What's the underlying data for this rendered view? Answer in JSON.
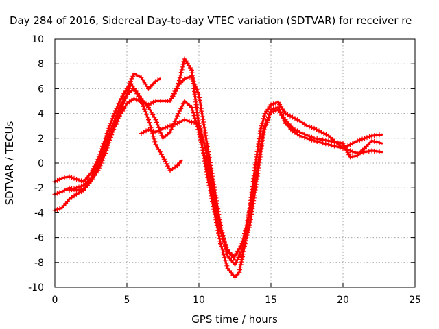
{
  "chart_data": {
    "type": "line",
    "title": "Day 284 of 2016, Sidereal Day-to-day VTEC variation (SDTVAR) for receiver re",
    "xlabel": "GPS time / hours",
    "ylabel": "SDTVAR / TECUs",
    "xlim": [
      0,
      25
    ],
    "ylim": [
      -10,
      10
    ],
    "xticks": [
      0,
      5,
      10,
      15,
      20,
      25
    ],
    "yticks": [
      -10,
      -8,
      -6,
      -4,
      -2,
      0,
      2,
      4,
      6,
      8,
      10
    ],
    "grid": true,
    "legend": "none",
    "marker": "plus",
    "color": "#ff0000",
    "series": [
      {
        "x": [
          0.0,
          0.5,
          1.0,
          1.5,
          2.0,
          2.5,
          3.0,
          3.5,
          4.0,
          4.5,
          5.0,
          5.3,
          5.6,
          6.0,
          6.5,
          7.0,
          7.5,
          8.0,
          8.5,
          8.8
        ],
        "y": [
          -3.8,
          -3.6,
          -2.9,
          -2.5,
          -2.2,
          -1.4,
          -0.6,
          0.8,
          2.5,
          4.0,
          5.6,
          6.4,
          5.8,
          5.0,
          3.5,
          1.5,
          0.5,
          -0.6,
          -0.2,
          0.2
        ]
      },
      {
        "x": [
          0.0,
          0.5,
          1.0,
          1.5,
          2.0,
          2.5,
          3.0,
          3.5,
          4.0,
          4.5,
          5.0,
          5.5,
          6.0,
          6.5,
          7.0,
          7.3
        ],
        "y": [
          -1.5,
          -1.2,
          -1.1,
          -1.3,
          -1.5,
          -0.8,
          0.3,
          2.0,
          3.6,
          5.0,
          6.0,
          7.2,
          6.9,
          6.0,
          6.6,
          6.8
        ]
      },
      {
        "x": [
          0.0,
          0.5,
          1.0,
          1.5,
          2.0,
          2.5,
          3.0,
          3.5,
          4.0,
          4.5,
          5.0,
          5.5,
          6.0,
          6.5,
          7.0,
          7.5,
          8.0,
          8.5,
          9.0,
          9.5,
          10.0,
          10.5,
          11.0,
          11.5,
          12.0,
          12.5,
          12.8,
          13.2,
          13.6,
          14.0,
          14.3,
          14.6,
          15.0,
          15.5,
          16.0,
          16.5,
          17.0,
          17.5,
          18.0,
          19.0,
          20.0,
          21.0,
          22.0,
          22.7
        ],
        "y": [
          -2.5,
          -2.3,
          -2.0,
          -2.2,
          -2.1,
          -1.5,
          -0.2,
          1.0,
          2.5,
          3.8,
          4.8,
          5.2,
          4.9,
          4.7,
          5.0,
          5.0,
          5.0,
          6.0,
          8.4,
          7.5,
          3.0,
          -0.5,
          -3.5,
          -6.5,
          -8.5,
          -9.2,
          -8.8,
          -6.5,
          -3.0,
          0.5,
          2.8,
          4.0,
          4.7,
          4.9,
          4.0,
          3.7,
          3.4,
          3.0,
          2.8,
          2.2,
          1.2,
          1.8,
          2.2,
          2.3
        ]
      },
      {
        "x": [
          8.0,
          8.5,
          9.0,
          9.5,
          10.0,
          10.5,
          11.0,
          11.5,
          12.0,
          12.5,
          13.0,
          13.5,
          14.0,
          14.5,
          15.0,
          15.5,
          16.0,
          16.5,
          17.0,
          17.5,
          18.0,
          19.0,
          20.0,
          21.0,
          22.0,
          22.7
        ],
        "y": [
          5.0,
          6.2,
          6.8,
          7.0,
          5.5,
          2.0,
          -1.5,
          -5.0,
          -7.5,
          -8.2,
          -7.0,
          -5.2,
          -1.5,
          2.5,
          4.3,
          4.5,
          3.2,
          2.6,
          2.2,
          2.0,
          1.8,
          1.5,
          1.2,
          0.8,
          1.0,
          0.9
        ]
      },
      {
        "x": [
          6.0,
          6.5,
          7.0,
          7.5,
          8.0,
          8.5,
          9.0,
          9.5,
          10.0,
          10.5,
          11.0,
          11.5,
          12.0,
          12.5,
          13.0,
          13.5,
          14.0,
          14.5,
          15.0,
          15.5,
          16.0,
          16.5,
          17.0,
          18.0,
          19.0,
          20.0,
          20.5,
          21.0,
          22.0,
          22.7
        ],
        "y": [
          2.4,
          2.7,
          2.5,
          2.8,
          3.0,
          3.2,
          3.5,
          3.3,
          3.2,
          1.0,
          -2.5,
          -5.5,
          -7.2,
          -7.5,
          -6.5,
          -4.0,
          -0.8,
          2.8,
          4.1,
          4.3,
          3.5,
          2.8,
          2.5,
          2.0,
          1.8,
          1.6,
          0.5,
          0.6,
          1.8,
          1.6
        ]
      },
      {
        "x": [
          1.0,
          1.5,
          2.0,
          2.5,
          3.0,
          3.5,
          4.0,
          4.5,
          5.0,
          5.5,
          6.0,
          6.5,
          7.0,
          7.5,
          8.0,
          8.5,
          9.0,
          9.5,
          10.0,
          10.5,
          11.0,
          11.5,
          12.0,
          12.5
        ],
        "y": [
          -2.2,
          -2.0,
          -1.8,
          -1.2,
          0.0,
          1.5,
          3.0,
          4.5,
          5.5,
          6.0,
          5.2,
          4.5,
          3.5,
          2.0,
          2.5,
          3.8,
          5.0,
          4.5,
          2.5,
          0.0,
          -3.0,
          -5.5,
          -7.0,
          -7.8
        ]
      }
    ]
  }
}
